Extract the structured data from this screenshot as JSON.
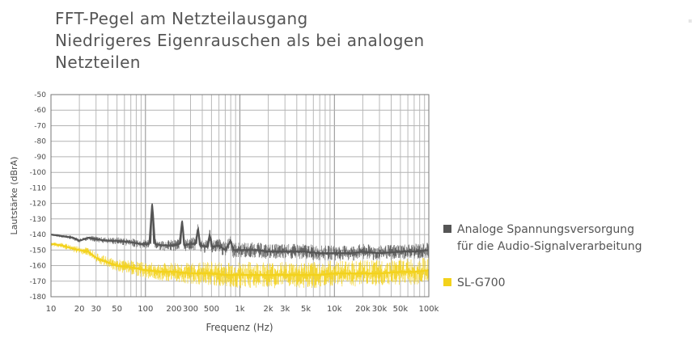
{
  "title_lines": [
    "FFT-Pegel am Netzteilausgang",
    "Niedrigeres Eigenrauschen als bei analogen",
    "Netzteilen"
  ],
  "colors": {
    "analog": "#555555",
    "sl_g700": "#f3d21c",
    "grid": "#9a9a9a",
    "text": "#4a4a4a"
  },
  "chart_data": {
    "type": "line",
    "xlabel": "Frequenz (Hz)",
    "ylabel": "Lautstärke (dBrA)",
    "x_scale": "log",
    "xlim": [
      10,
      100000
    ],
    "ylim": [
      -180,
      -50
    ],
    "grid": true,
    "legend_position": "right",
    "x_ticks": [
      {
        "value": 10,
        "label": "10"
      },
      {
        "value": 20,
        "label": "20"
      },
      {
        "value": 30,
        "label": "30"
      },
      {
        "value": 50,
        "label": "50"
      },
      {
        "value": 100,
        "label": "100"
      },
      {
        "value": 200,
        "label": "200"
      },
      {
        "value": 300,
        "label": "300"
      },
      {
        "value": 500,
        "label": "500"
      },
      {
        "value": 1000,
        "label": "1k"
      },
      {
        "value": 2000,
        "label": "2k"
      },
      {
        "value": 3000,
        "label": "3k"
      },
      {
        "value": 5000,
        "label": "5k"
      },
      {
        "value": 10000,
        "label": "10k"
      },
      {
        "value": 20000,
        "label": "20k"
      },
      {
        "value": 30000,
        "label": "30k"
      },
      {
        "value": 50000,
        "label": "50k"
      },
      {
        "value": 100000,
        "label": "100k"
      }
    ],
    "y_ticks": [
      -50,
      -60,
      -70,
      -80,
      -90,
      -100,
      -110,
      -120,
      -130,
      -140,
      -150,
      -160,
      -170,
      -180
    ],
    "series": [
      {
        "name": "Analoge Spannungsversorgung\nfür die Audio-Signalverarbeitung",
        "color": "#555555",
        "points": [
          [
            10,
            -140
          ],
          [
            13,
            -141
          ],
          [
            17,
            -142
          ],
          [
            20,
            -144
          ],
          [
            25,
            -142
          ],
          [
            30,
            -143
          ],
          [
            40,
            -144
          ],
          [
            50,
            -144
          ],
          [
            70,
            -145
          ],
          [
            90,
            -146
          ],
          [
            110,
            -146
          ],
          [
            118,
            -120
          ],
          [
            126,
            -146
          ],
          [
            150,
            -147
          ],
          [
            200,
            -147
          ],
          [
            230,
            -146
          ],
          [
            245,
            -131
          ],
          [
            258,
            -147
          ],
          [
            300,
            -146
          ],
          [
            340,
            -146
          ],
          [
            360,
            -136
          ],
          [
            380,
            -147
          ],
          [
            450,
            -148
          ],
          [
            480,
            -140
          ],
          [
            510,
            -148
          ],
          [
            600,
            -147
          ],
          [
            700,
            -150
          ],
          [
            800,
            -144
          ],
          [
            850,
            -150
          ],
          [
            1000,
            -150
          ],
          [
            1500,
            -150
          ],
          [
            2000,
            -151
          ],
          [
            3000,
            -151
          ],
          [
            5000,
            -151
          ],
          [
            7000,
            -152
          ],
          [
            10000,
            -152
          ],
          [
            15000,
            -152
          ],
          [
            20000,
            -151
          ],
          [
            30000,
            -152
          ],
          [
            50000,
            -151
          ],
          [
            70000,
            -151
          ],
          [
            100000,
            -150
          ]
        ],
        "noise_band_db": [
          -156,
          -146
        ]
      },
      {
        "name": "SL-G700",
        "color": "#f3d21c",
        "points": [
          [
            10,
            -146
          ],
          [
            13,
            -147
          ],
          [
            17,
            -149
          ],
          [
            20,
            -150
          ],
          [
            25,
            -151
          ],
          [
            30,
            -155
          ],
          [
            40,
            -158
          ],
          [
            50,
            -160
          ],
          [
            70,
            -161
          ],
          [
            100,
            -163
          ],
          [
            150,
            -164
          ],
          [
            200,
            -164
          ],
          [
            300,
            -165
          ],
          [
            500,
            -165
          ],
          [
            700,
            -166
          ],
          [
            1000,
            -166
          ],
          [
            2000,
            -166
          ],
          [
            3000,
            -166
          ],
          [
            5000,
            -166
          ],
          [
            7000,
            -166
          ],
          [
            10000,
            -165
          ],
          [
            20000,
            -165
          ],
          [
            30000,
            -165
          ],
          [
            50000,
            -164
          ],
          [
            70000,
            -164
          ],
          [
            100000,
            -163
          ]
        ],
        "noise_band_db": [
          -175,
          -158
        ]
      }
    ]
  }
}
